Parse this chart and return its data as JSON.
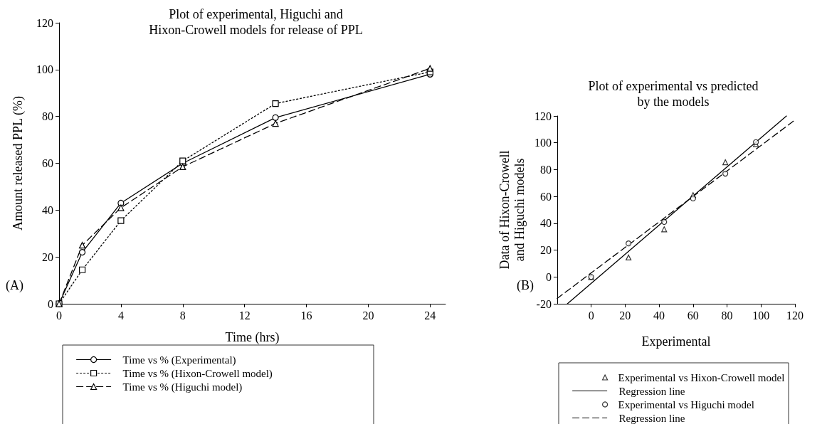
{
  "chart_data": [
    {
      "type": "line",
      "title": "Plot of experimental, Higuchi and\nHixon-Crowell models for release of PPL",
      "xlabel": "Time (hrs)",
      "ylabel": "Amount released PPL (%)",
      "annotations": [
        "(A)"
      ],
      "xlim": [
        0,
        25
      ],
      "xticks": [
        0,
        4,
        8,
        12,
        16,
        20,
        24
      ],
      "ylim": [
        0,
        120
      ],
      "yticks": [
        0,
        20,
        40,
        60,
        80,
        100,
        120
      ],
      "grid": false,
      "legend": "bottom",
      "x": [
        0,
        1.5,
        4,
        8,
        14,
        24
      ],
      "series": [
        {
          "name": "Time vs % (Experimental)",
          "color": "#000000",
          "marker": "circle",
          "line_style": "solid",
          "values": [
            0,
            22,
            43,
            60,
            79.5,
            98
          ]
        },
        {
          "name": "Time vs % (Hixon-Crowell model)",
          "color": "#000000",
          "marker": "square",
          "line_style": "dotted",
          "values": [
            0,
            14.5,
            35.5,
            61,
            85.5,
            99
          ]
        },
        {
          "name": "Time vs % (Higuchi model)",
          "color": "#000000",
          "marker": "triangle",
          "line_style": "dashed",
          "values": [
            0,
            25,
            41,
            58.5,
            77,
            100.5
          ]
        }
      ]
    },
    {
      "type": "scatter",
      "title": "Plot of experimental vs predicted\nby the models",
      "xlabel": "Experimental",
      "ylabel": "Data of Hixon-Crowell\nand Higuchi models",
      "annotations": [
        "(B)"
      ],
      "xlim": [
        -20,
        120
      ],
      "xticks": [
        0,
        20,
        40,
        60,
        80,
        100,
        120
      ],
      "ylim": [
        -20,
        120
      ],
      "yticks": [
        -20,
        0,
        20,
        40,
        60,
        80,
        100,
        120
      ],
      "grid": false,
      "legend": "bottom",
      "x": [
        0,
        22,
        43,
        60,
        79,
        97
      ],
      "series": [
        {
          "name": "Experimental vs Hixon-Crowell model",
          "color": "#000000",
          "marker": "triangle",
          "values": [
            0,
            14.5,
            35.5,
            61,
            85.5,
            99
          ]
        },
        {
          "name": "Regression line",
          "type": "line",
          "color": "#000000",
          "marker": "none",
          "line_style": "solid",
          "x": [
            -14,
            115
          ],
          "values": [
            -20,
            120
          ]
        },
        {
          "name": "Experimental vs Higuchi model",
          "color": "#000000",
          "marker": "circle",
          "values": [
            0,
            25,
            41,
            58.5,
            77,
            100.5
          ]
        },
        {
          "name": "Regression line",
          "type": "line",
          "color": "#000000",
          "marker": "none",
          "line_style": "dashed",
          "x": [
            -20,
            120
          ],
          "values": [
            -16,
            117
          ]
        }
      ]
    }
  ]
}
